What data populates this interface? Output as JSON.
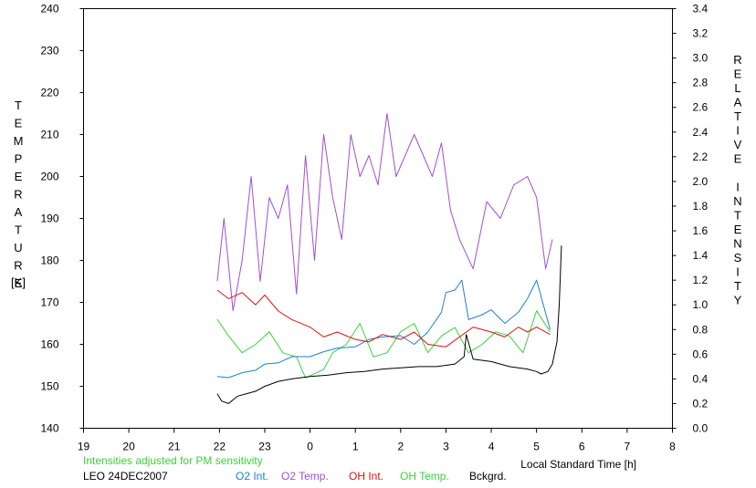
{
  "chart_data": {
    "type": "line",
    "title": "",
    "note": "Intensities adjusted for PM sensitivity",
    "station": "LEO 24DEC2007",
    "xlabel": "Local Standard Time [h]",
    "ylabel_left": "TEMPERATURE",
    "ylabel_left_unit": "[K]",
    "ylabel_right": "RELATIVE INTENSITY",
    "x_ticks": [
      "19",
      "20",
      "21",
      "22",
      "23",
      "0",
      "1",
      "2",
      "3",
      "4",
      "5",
      "6",
      "7",
      "8"
    ],
    "xlim": [
      19,
      32
    ],
    "y_left_ticks": [
      "140",
      "150",
      "160",
      "170",
      "180",
      "190",
      "200",
      "210",
      "220",
      "230",
      "240"
    ],
    "ylim_left": [
      140,
      240
    ],
    "y_right_ticks": [
      "0.0",
      "0.2",
      "0.4",
      "0.6",
      "0.8",
      "1.0",
      "1.2",
      "1.4",
      "1.6",
      "1.8",
      "2.0",
      "2.2",
      "2.4",
      "2.6",
      "2.8",
      "3.0",
      "3.2",
      "3.4"
    ],
    "ylim_right": [
      0,
      3.4
    ],
    "grid": false,
    "legend": [
      {
        "label": "O2 Int.",
        "color": "#1e7fd6"
      },
      {
        "label": "O2 Temp.",
        "color": "#a050d0"
      },
      {
        "label": "OH Int.",
        "color": "#e01010"
      },
      {
        "label": "OH Temp.",
        "color": "#3ad23a"
      },
      {
        "label": "Bckgrd.",
        "color": "#000000"
      }
    ],
    "series": [
      {
        "name": "O2 Int.",
        "axis": "right",
        "color": "#1e7fd6",
        "x": [
          21.95,
          22.2,
          22.5,
          22.8,
          23.0,
          23.3,
          23.6,
          24.0,
          24.3,
          24.6,
          25.0,
          25.3,
          25.6,
          26.0,
          26.3,
          26.6,
          26.9,
          27.0,
          27.2,
          27.35,
          27.5,
          27.8,
          28.0,
          28.3,
          28.6,
          28.8,
          29.0,
          29.3
        ],
        "y": [
          0.42,
          0.41,
          0.45,
          0.47,
          0.52,
          0.53,
          0.58,
          0.58,
          0.62,
          0.65,
          0.66,
          0.72,
          0.74,
          0.75,
          0.68,
          0.78,
          0.94,
          1.1,
          1.12,
          1.2,
          0.88,
          0.92,
          0.96,
          0.85,
          0.94,
          1.05,
          1.2,
          0.8
        ]
      },
      {
        "name": "O2 Temp.",
        "axis": "left",
        "color": "#a050d0",
        "x": [
          21.95,
          22.1,
          22.3,
          22.5,
          22.7,
          22.9,
          23.1,
          23.3,
          23.5,
          23.7,
          23.9,
          24.1,
          24.3,
          24.5,
          24.7,
          24.9,
          25.1,
          25.3,
          25.5,
          25.7,
          25.9,
          26.1,
          26.3,
          26.5,
          26.7,
          26.9,
          27.1,
          27.3,
          27.6,
          27.9,
          28.2,
          28.5,
          28.8,
          29.0,
          29.2,
          29.35
        ],
        "y": [
          175,
          190,
          168,
          180,
          200,
          175,
          195,
          190,
          198,
          172,
          205,
          180,
          210,
          195,
          185,
          210,
          200,
          205,
          198,
          215,
          200,
          205,
          210,
          205,
          200,
          208,
          192,
          185,
          178,
          194,
          190,
          198,
          200,
          195,
          178,
          185
        ]
      },
      {
        "name": "OH Int.",
        "axis": "right",
        "color": "#e01010",
        "x": [
          21.95,
          22.2,
          22.5,
          22.8,
          23.0,
          23.3,
          23.6,
          24.0,
          24.3,
          24.6,
          25.0,
          25.3,
          25.6,
          26.0,
          26.3,
          26.6,
          27.0,
          27.3,
          27.6,
          28.0,
          28.3,
          28.6,
          28.8,
          29.0,
          29.3
        ],
        "y": [
          1.12,
          1.05,
          1.1,
          1.0,
          1.08,
          0.95,
          0.88,
          0.82,
          0.74,
          0.78,
          0.72,
          0.7,
          0.76,
          0.72,
          0.78,
          0.68,
          0.66,
          0.74,
          0.82,
          0.78,
          0.74,
          0.82,
          0.78,
          0.82,
          0.76
        ]
      },
      {
        "name": "OH Temp.",
        "axis": "left",
        "color": "#3ad23a",
        "x": [
          21.95,
          22.2,
          22.5,
          22.8,
          23.1,
          23.4,
          23.7,
          23.9,
          24.1,
          24.3,
          24.5,
          24.8,
          25.1,
          25.4,
          25.7,
          26.0,
          26.3,
          26.6,
          26.9,
          27.2,
          27.5,
          27.8,
          28.1,
          28.4,
          28.7,
          29.0,
          29.3
        ],
        "y": [
          166,
          162,
          158,
          160,
          163,
          158,
          157,
          152,
          153,
          154,
          158,
          160,
          165,
          157,
          158,
          163,
          165,
          158,
          162,
          164,
          158,
          160,
          163,
          162,
          158,
          168,
          163
        ]
      },
      {
        "name": "Bckgrd.",
        "axis": "right",
        "color": "#000000",
        "x": [
          21.95,
          22.05,
          22.2,
          22.4,
          22.6,
          22.8,
          23.0,
          23.3,
          23.6,
          24.0,
          24.4,
          24.8,
          25.2,
          25.6,
          26.0,
          26.4,
          26.8,
          27.2,
          27.4,
          27.45,
          27.6,
          28.0,
          28.4,
          28.8,
          29.0,
          29.1,
          29.25,
          29.35,
          29.45,
          29.5,
          29.55
        ],
        "y": [
          0.28,
          0.22,
          0.2,
          0.26,
          0.28,
          0.3,
          0.34,
          0.38,
          0.4,
          0.42,
          0.43,
          0.45,
          0.46,
          0.48,
          0.49,
          0.5,
          0.5,
          0.52,
          0.58,
          0.76,
          0.56,
          0.54,
          0.5,
          0.48,
          0.46,
          0.44,
          0.46,
          0.52,
          0.7,
          1.0,
          1.48
        ]
      }
    ]
  }
}
